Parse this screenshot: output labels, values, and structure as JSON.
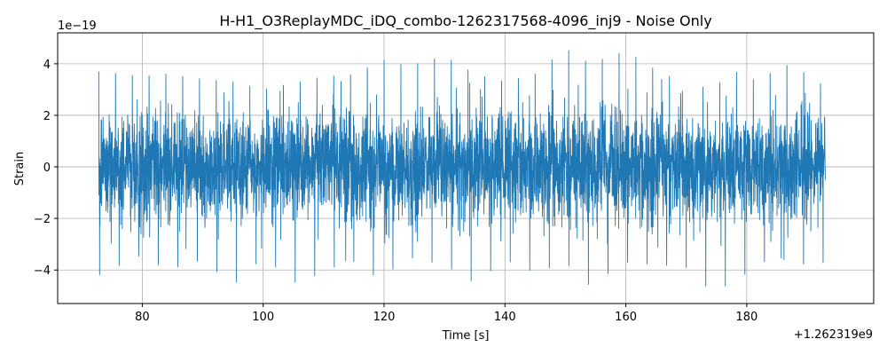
{
  "chart_data": {
    "type": "line",
    "title": "H-H1_O3ReplayMDC_iDQ_combo-1262317568-4096_inj9 - Noise Only",
    "xlabel": "Time [s]",
    "ylabel": "Strain",
    "x_offset_label": "+1.262319e9",
    "y_scale_label": "1e−19",
    "xlim": [
      66,
      201
    ],
    "ylim": [
      -5.3,
      5.2
    ],
    "x_ticks": [
      80,
      100,
      120,
      140,
      160,
      180
    ],
    "y_ticks": [
      -4,
      -2,
      0,
      2,
      4
    ],
    "grid": true,
    "series_color": "#1f77b4",
    "series": [
      {
        "x_start": 72.8,
        "x_end": 193.0,
        "envelope_x": [
          72.8,
          80,
          84,
          90,
          95,
          100,
          106,
          110,
          116,
          119,
          124,
          130,
          135,
          140,
          145,
          150,
          154,
          160,
          166,
          170,
          174,
          178,
          182,
          186,
          190,
          193.0
        ],
        "envelope_upper": [
          3.7,
          3.5,
          3.6,
          3.4,
          3.3,
          3.0,
          3.3,
          3.5,
          3.6,
          4.2,
          3.9,
          4.3,
          3.6,
          3.3,
          3.6,
          4.6,
          4.0,
          4.5,
          3.6,
          3.3,
          3.0,
          3.7,
          3.3,
          4.0,
          3.6,
          3.1
        ],
        "envelope_lower": [
          -4.2,
          -3.4,
          -4.0,
          -3.6,
          -4.6,
          -3.5,
          -4.6,
          -4.0,
          -3.6,
          -4.4,
          -3.5,
          -3.8,
          -4.5,
          -3.6,
          -4.1,
          -3.7,
          -4.6,
          -3.7,
          -3.8,
          -3.9,
          -4.8,
          -4.5,
          -3.7,
          -3.6,
          -3.8,
          -3.7
        ]
      }
    ]
  }
}
